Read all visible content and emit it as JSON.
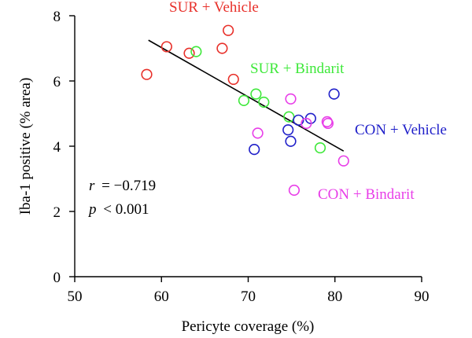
{
  "chart_data": {
    "type": "scatter",
    "title": "",
    "xlabel": "Pericyte coverage (%)",
    "ylabel": "Iba-1 positive (% area)",
    "xlim": [
      50,
      90
    ],
    "ylim": [
      0,
      8
    ],
    "xticks": [
      50,
      60,
      70,
      80,
      90
    ],
    "yticks": [
      0,
      2,
      4,
      6,
      8
    ],
    "grid": false,
    "series": [
      {
        "name": "SUR + Vehicle",
        "color": "#e8302a",
        "points": [
          {
            "x": 58.3,
            "y": 6.2
          },
          {
            "x": 60.6,
            "y": 7.05
          },
          {
            "x": 63.2,
            "y": 6.85
          },
          {
            "x": 67.0,
            "y": 7.0
          },
          {
            "x": 67.7,
            "y": 7.55
          },
          {
            "x": 68.3,
            "y": 6.05
          }
        ]
      },
      {
        "name": "SUR + Bindarit",
        "color": "#3ee83a",
        "points": [
          {
            "x": 64.0,
            "y": 6.9
          },
          {
            "x": 69.5,
            "y": 5.4
          },
          {
            "x": 70.9,
            "y": 5.6
          },
          {
            "x": 71.8,
            "y": 5.35
          },
          {
            "x": 74.7,
            "y": 4.9
          },
          {
            "x": 78.3,
            "y": 3.95
          }
        ]
      },
      {
        "name": "CON + Vehicle",
        "color": "#1f1fc9",
        "points": [
          {
            "x": 70.7,
            "y": 3.9
          },
          {
            "x": 74.6,
            "y": 4.5
          },
          {
            "x": 74.9,
            "y": 4.15
          },
          {
            "x": 75.8,
            "y": 4.8
          },
          {
            "x": 77.2,
            "y": 4.85
          },
          {
            "x": 79.9,
            "y": 5.6
          }
        ]
      },
      {
        "name": "CON + Bindarit",
        "color": "#e83ee8",
        "points": [
          {
            "x": 71.1,
            "y": 4.4
          },
          {
            "x": 74.9,
            "y": 5.45
          },
          {
            "x": 75.3,
            "y": 2.65
          },
          {
            "x": 76.7,
            "y": 4.7
          },
          {
            "x": 79.1,
            "y": 4.75
          },
          {
            "x": 79.2,
            "y": 4.7
          },
          {
            "x": 81.0,
            "y": 3.55
          }
        ]
      }
    ],
    "fit_line": {
      "x": [
        58.5,
        81.0
      ],
      "y": [
        7.25,
        3.85
      ]
    },
    "annotations": {
      "r_symbol": "r",
      "r_value": "= −0.719",
      "p_symbol": "p",
      "p_value": "< 0.001"
    }
  }
}
